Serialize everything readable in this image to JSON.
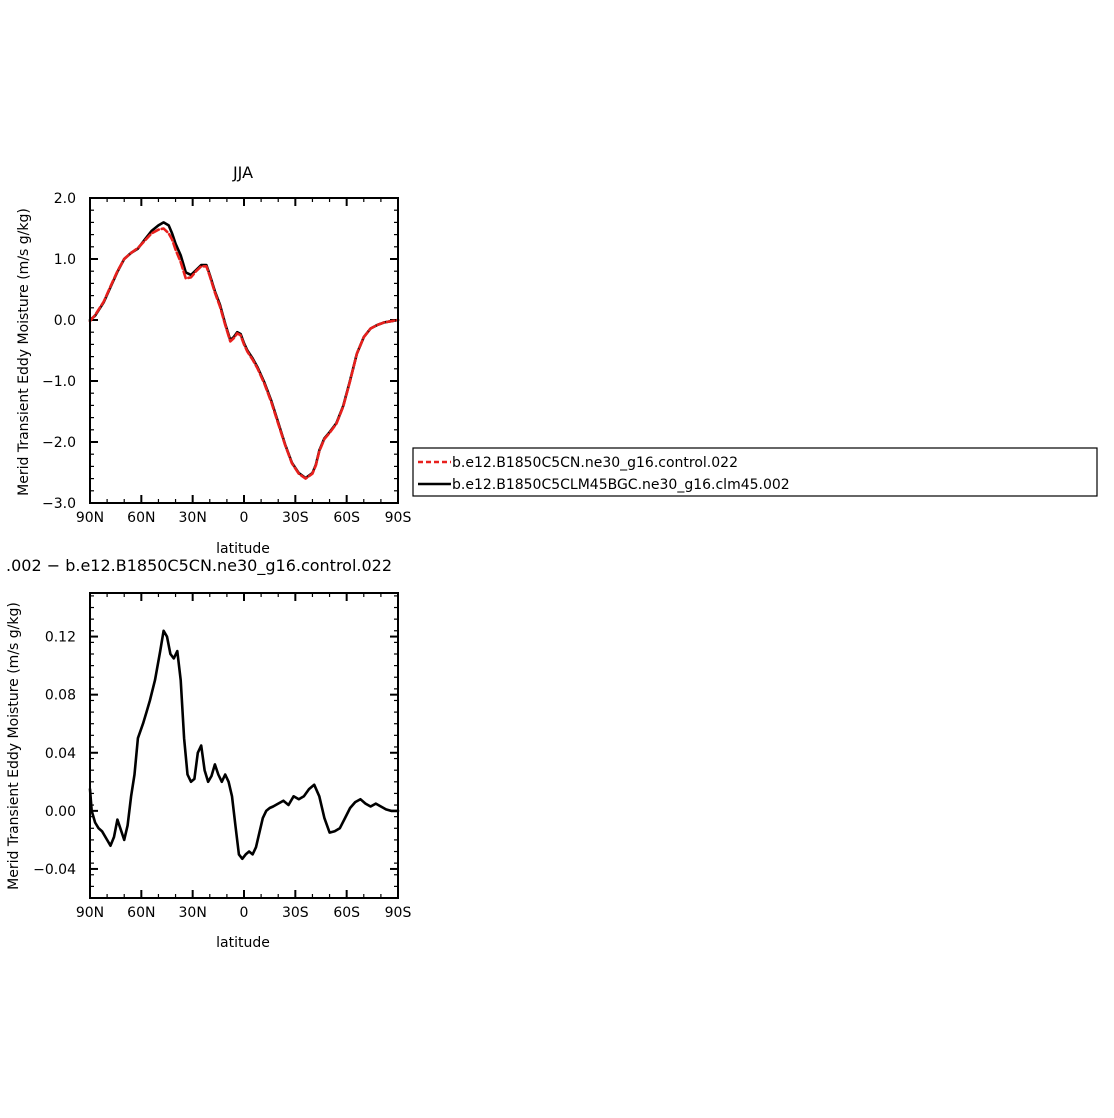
{
  "colors": {
    "control": "#e8201d",
    "clm45": "#000000",
    "axis": "#000000"
  },
  "chart_data": [
    {
      "type": "line",
      "title": "JJA",
      "xlabel": "latitude",
      "ylabel": "Merid Transient Eddy Moisture (m/s g/kg)",
      "xlim": [
        90,
        -90
      ],
      "ylim": [
        -3.0,
        2.0
      ],
      "x_ticks": [
        90,
        60,
        30,
        0,
        -30,
        -60,
        -90
      ],
      "x_tick_labels": [
        "90N",
        "60N",
        "30N",
        "0",
        "30S",
        "60S",
        "90S"
      ],
      "y_ticks": [
        -3.0,
        -2.0,
        -1.0,
        0.0,
        1.0,
        2.0
      ],
      "y_tick_labels": [
        "−3.0",
        "−2.0",
        "−1.0",
        "0.0",
        "1.0",
        "2.0"
      ],
      "legend_position": "right of plot",
      "series": [
        {
          "name": "b.e12.B1850C5CN.ne30_g16.control.022",
          "color": "#e8201d",
          "dash": "dashed",
          "x": [
            90,
            87,
            82,
            78,
            74,
            70,
            66,
            62,
            58,
            54,
            50,
            47,
            44,
            42,
            40,
            37,
            34,
            31,
            28,
            25,
            22,
            20,
            17,
            14,
            11,
            8,
            6,
            4,
            2,
            0,
            -2,
            -5,
            -8,
            -12,
            -16,
            -20,
            -24,
            -28,
            -32,
            -36,
            -40,
            -42,
            -44,
            -47,
            -50,
            -54,
            -58,
            -62,
            -66,
            -70,
            -74,
            -78,
            -82,
            -86,
            -90
          ],
          "y": [
            -0.02,
            0.08,
            0.3,
            0.55,
            0.8,
            1.0,
            1.1,
            1.18,
            1.3,
            1.42,
            1.48,
            1.5,
            1.42,
            1.32,
            1.15,
            0.95,
            0.68,
            0.7,
            0.8,
            0.88,
            0.88,
            0.72,
            0.45,
            0.22,
            -0.08,
            -0.35,
            -0.3,
            -0.22,
            -0.25,
            -0.4,
            -0.52,
            -0.65,
            -0.8,
            -1.05,
            -1.35,
            -1.7,
            -2.05,
            -2.35,
            -2.52,
            -2.6,
            -2.52,
            -2.38,
            -2.15,
            -1.95,
            -1.85,
            -1.7,
            -1.42,
            -1.0,
            -0.55,
            -0.28,
            -0.14,
            -0.08,
            -0.04,
            -0.02,
            0.0
          ]
        },
        {
          "name": "b.e12.B1850C5CLM45BGC.ne30_g16.clm45.002",
          "color": "#000000",
          "dash": "solid",
          "x": [
            90,
            87,
            82,
            78,
            74,
            70,
            66,
            62,
            58,
            54,
            50,
            47,
            44,
            42,
            40,
            37,
            34,
            31,
            28,
            25,
            22,
            20,
            17,
            14,
            11,
            8,
            6,
            4,
            2,
            0,
            -2,
            -5,
            -8,
            -12,
            -16,
            -20,
            -24,
            -28,
            -32,
            -36,
            -40,
            -42,
            -44,
            -47,
            -50,
            -54,
            -58,
            -62,
            -66,
            -70,
            -74,
            -78,
            -82,
            -86,
            -90
          ],
          "y": [
            0.0,
            0.07,
            0.29,
            0.54,
            0.79,
            1.0,
            1.1,
            1.17,
            1.32,
            1.46,
            1.55,
            1.6,
            1.55,
            1.42,
            1.25,
            1.06,
            0.78,
            0.74,
            0.82,
            0.9,
            0.9,
            0.74,
            0.47,
            0.25,
            -0.06,
            -0.33,
            -0.28,
            -0.2,
            -0.23,
            -0.38,
            -0.5,
            -0.63,
            -0.78,
            -1.03,
            -1.33,
            -1.68,
            -2.04,
            -2.34,
            -2.51,
            -2.59,
            -2.51,
            -2.37,
            -2.14,
            -1.94,
            -1.84,
            -1.69,
            -1.41,
            -0.99,
            -0.55,
            -0.28,
            -0.14,
            -0.08,
            -0.04,
            -0.02,
            0.0
          ]
        }
      ]
    },
    {
      "type": "line",
      "title": ".002 − b.e12.B1850C5CN.ne30_g16.control.022",
      "xlabel": "latitude",
      "ylabel": "Merid Transient Eddy Moisture (m/s g/kg)",
      "xlim": [
        90,
        -90
      ],
      "ylim": [
        -0.06,
        0.15
      ],
      "x_ticks": [
        90,
        60,
        30,
        0,
        -30,
        -60,
        -90
      ],
      "x_tick_labels": [
        "90N",
        "60N",
        "30N",
        "0",
        "30S",
        "60S",
        "90S"
      ],
      "y_ticks": [
        -0.04,
        0.0,
        0.04,
        0.08,
        0.12
      ],
      "y_tick_labels": [
        "−0.04",
        "0.00",
        "0.04",
        "0.08",
        "0.12"
      ],
      "series": [
        {
          "color": "#000000",
          "dash": "solid",
          "x": [
            90,
            89,
            87,
            85,
            83,
            80,
            78,
            76,
            74,
            72,
            70,
            68,
            66,
            64,
            62,
            59,
            57,
            55,
            52,
            49,
            47,
            45,
            43,
            41,
            39,
            37,
            35,
            33,
            31,
            29,
            27,
            25,
            23,
            21,
            19,
            17,
            15,
            13,
            11,
            9,
            7,
            5,
            3,
            1,
            -1,
            -3,
            -5,
            -7,
            -9,
            -11,
            -13,
            -15,
            -17,
            -20,
            -23,
            -26,
            -29,
            -32,
            -35,
            -38,
            -41,
            -44,
            -47,
            -50,
            -53,
            -56,
            -59,
            -62,
            -65,
            -68,
            -71,
            -74,
            -77,
            -80,
            -83,
            -86,
            -88,
            -90
          ],
          "y": [
            0.015,
            0.0,
            -0.008,
            -0.012,
            -0.014,
            -0.02,
            -0.024,
            -0.018,
            -0.006,
            -0.013,
            -0.02,
            -0.01,
            0.01,
            0.025,
            0.05,
            0.06,
            0.068,
            0.076,
            0.09,
            0.11,
            0.124,
            0.12,
            0.108,
            0.105,
            0.11,
            0.09,
            0.05,
            0.025,
            0.02,
            0.022,
            0.04,
            0.045,
            0.028,
            0.02,
            0.024,
            0.032,
            0.025,
            0.02,
            0.025,
            0.02,
            0.01,
            -0.01,
            -0.03,
            -0.033,
            -0.03,
            -0.028,
            -0.03,
            -0.025,
            -0.015,
            -0.005,
            0.0,
            0.002,
            0.003,
            0.005,
            0.007,
            0.004,
            0.01,
            0.008,
            0.01,
            0.015,
            0.018,
            0.01,
            -0.005,
            -0.015,
            -0.014,
            -0.012,
            -0.005,
            0.002,
            0.006,
            0.008,
            0.005,
            0.003,
            0.005,
            0.003,
            0.001,
            0.0,
            0.0,
            0.0
          ]
        }
      ]
    }
  ]
}
